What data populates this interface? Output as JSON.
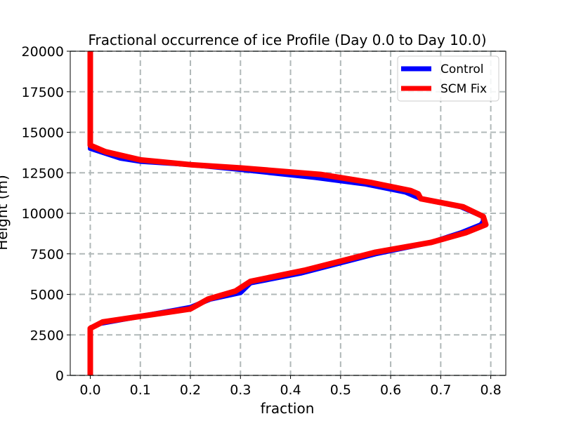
{
  "chart_data": {
    "type": "line",
    "title": "Fractional occurrence of ice Profile (Day 0.0 to Day 10.0)",
    "xlabel": "fraction",
    "ylabel": "Height (m)",
    "xlim": [
      -0.04,
      0.83
    ],
    "ylim": [
      0,
      20000
    ],
    "xticks": [
      0.0,
      0.1,
      0.2,
      0.3,
      0.4,
      0.5,
      0.6,
      0.7,
      0.8
    ],
    "xtick_labels": [
      "0.0",
      "0.1",
      "0.2",
      "0.3",
      "0.4",
      "0.5",
      "0.6",
      "0.7",
      "0.8"
    ],
    "yticks": [
      0,
      2500,
      5000,
      7500,
      10000,
      12500,
      15000,
      17500,
      20000
    ],
    "ytick_labels": [
      "0",
      "2500",
      "5000",
      "7500",
      "10000",
      "12500",
      "15000",
      "17500",
      "20000"
    ],
    "grid": true,
    "legend_position": "top-right",
    "series": [
      {
        "name": "Control",
        "color": "#0000ff",
        "x": [
          0.0,
          0.0,
          0.0,
          0.02,
          0.2,
          0.24,
          0.3,
          0.32,
          0.42,
          0.57,
          0.68,
          0.74,
          0.78,
          0.785,
          0.785,
          0.74,
          0.66,
          0.645,
          0.63,
          0.55,
          0.45,
          0.3,
          0.2,
          0.1,
          0.06,
          0.0,
          0.0,
          0.0
        ],
        "y": [
          0,
          2500,
          2900,
          3200,
          4200,
          4700,
          5100,
          5700,
          6300,
          7500,
          8200,
          8800,
          9300,
          9500,
          9800,
          10400,
          10900,
          11100,
          11300,
          11800,
          12200,
          12700,
          13000,
          13200,
          13400,
          14000,
          15000,
          20000
        ]
      },
      {
        "name": "SCM Fix",
        "color": "#ff0000",
        "x": [
          0.0,
          0.0,
          0.0,
          0.025,
          0.2,
          0.235,
          0.29,
          0.32,
          0.43,
          0.57,
          0.68,
          0.75,
          0.79,
          0.785,
          0.745,
          0.66,
          0.655,
          0.64,
          0.56,
          0.46,
          0.3,
          0.2,
          0.1,
          0.03,
          0.0,
          0.0,
          0.0
        ],
        "y": [
          0,
          2500,
          2900,
          3300,
          4100,
          4700,
          5200,
          5800,
          6500,
          7600,
          8200,
          8800,
          9300,
          9800,
          10400,
          10900,
          11200,
          11400,
          11900,
          12400,
          12800,
          13000,
          13300,
          13800,
          14200,
          15000,
          20000
        ]
      }
    ]
  }
}
